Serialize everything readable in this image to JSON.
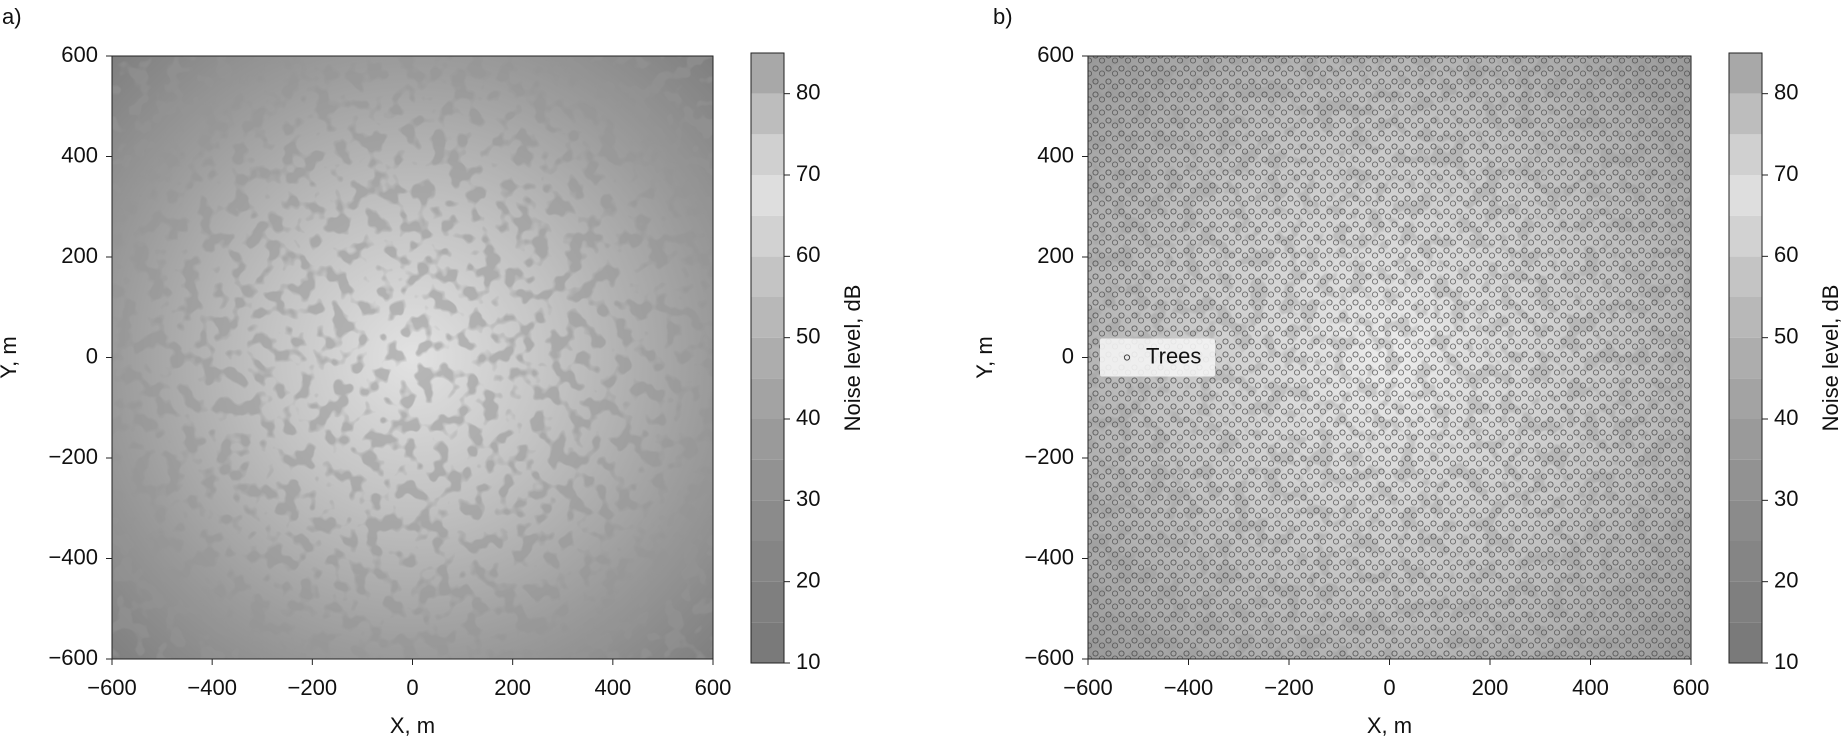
{
  "chart_data": [
    {
      "type": "contour",
      "panel_label": "a)",
      "xlabel": "X, m",
      "ylabel": "Y, m",
      "xlim": [
        -600,
        600
      ],
      "ylim": [
        -600,
        600
      ],
      "xticks": [
        {
          "value": -600,
          "label": "−600"
        },
        {
          "value": -400,
          "label": "−400"
        },
        {
          "value": -200,
          "label": "−200"
        },
        0,
        200,
        400,
        600
      ],
      "yticks": [
        {
          "value": -600,
          "label": "−600"
        },
        {
          "value": -400,
          "label": "−400"
        },
        {
          "value": -200,
          "label": "−200"
        },
        0,
        200,
        400,
        600
      ],
      "colorbar": {
        "label": "Noise level, dB",
        "lim": [
          10,
          85
        ],
        "ticks": [
          10,
          20,
          30,
          40,
          50,
          60,
          70,
          80
        ],
        "levels": [
          10,
          15,
          20,
          25,
          30,
          35,
          40,
          45,
          50,
          55,
          60,
          65,
          70,
          75,
          80,
          85
        ],
        "colors": [
          "#7a7a7a",
          "#7f7f7f",
          "#858585",
          "#8b8b8b",
          "#929292",
          "#9a9a9a",
          "#a3a3a3",
          "#adadad",
          "#b8b8b8",
          "#c4c4c4",
          "#d2d2d2",
          "#dedede",
          "#d0d0d0",
          "#bdbdbd",
          "#a8a8a8"
        ]
      }
    },
    {
      "type": "contour",
      "panel_label": "b)",
      "xlabel": "X, m",
      "ylabel": "Y, m",
      "xlim": [
        -600,
        600
      ],
      "ylim": [
        -600,
        600
      ],
      "xticks": [
        {
          "value": -600,
          "label": "−600"
        },
        {
          "value": -400,
          "label": "−400"
        },
        {
          "value": -200,
          "label": "−200"
        },
        0,
        200,
        400,
        600
      ],
      "yticks": [
        {
          "value": -600,
          "label": "−600"
        },
        {
          "value": -400,
          "label": "−400"
        },
        {
          "value": -200,
          "label": "−200"
        },
        0,
        200,
        400,
        600
      ],
      "legend": {
        "loc": "center left",
        "entries": [
          "Trees"
        ]
      },
      "colorbar": {
        "label": "Noise level, dB",
        "lim": [
          10,
          85
        ],
        "ticks": [
          10,
          20,
          30,
          40,
          50,
          60,
          70,
          80
        ],
        "levels": [
          10,
          15,
          20,
          25,
          30,
          35,
          40,
          45,
          50,
          55,
          60,
          65,
          70,
          75,
          80,
          85
        ],
        "colors": [
          "#7a7a7a",
          "#7f7f7f",
          "#858585",
          "#8b8b8b",
          "#929292",
          "#9a9a9a",
          "#a3a3a3",
          "#adadad",
          "#b8b8b8",
          "#c4c4c4",
          "#d2d2d2",
          "#dedede",
          "#d0d0d0",
          "#bdbdbd",
          "#a8a8a8"
        ]
      }
    }
  ]
}
